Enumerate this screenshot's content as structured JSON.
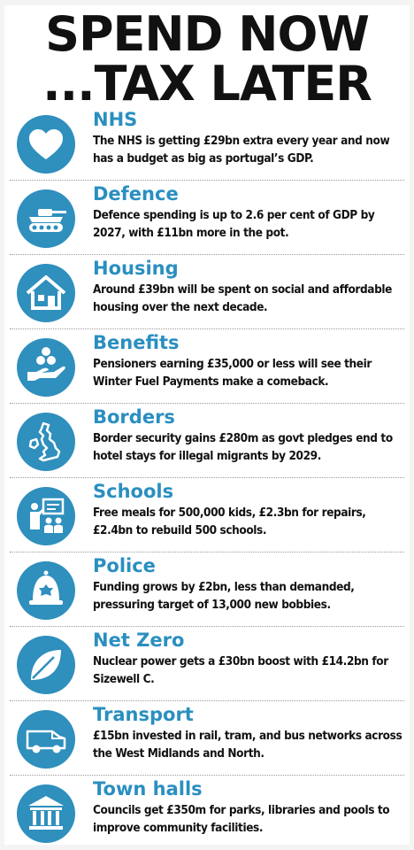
{
  "title": {
    "line1": "SPEND NOW",
    "line2": "...TAX LATER"
  },
  "accent_color": "#2f8fbd",
  "heading_color": "#2a8fc0",
  "items": [
    {
      "icon": "heart-icon",
      "heading": "NHS",
      "text": "The NHS is getting £29bn extra every year and now has a budget as big as portugal’s GDP."
    },
    {
      "icon": "tank-icon",
      "heading": "Defence",
      "text": "Defence spending is up to 2.6 per cent of GDP by 2027, with £11bn more in the pot."
    },
    {
      "icon": "house-icon",
      "heading": "Housing",
      "text": "Around £39bn will be spent on social and affordable housing over the next decade."
    },
    {
      "icon": "hand-coins-icon",
      "heading": "Benefits",
      "text": "Pensioners earning £35,000 or less will see their Winter Fuel Payments make a comeback."
    },
    {
      "icon": "uk-map-icon",
      "heading": "Borders",
      "text": "Border security gains £280m as govt pledges end to hotel stays for illegal migrants by 2029."
    },
    {
      "icon": "teacher-icon",
      "heading": "Schools",
      "text": "Free meals for 500,000 kids, £2.3bn for repairs, £2.4bn to rebuild 500 schools."
    },
    {
      "icon": "police-helmet-icon",
      "heading": "Police",
      "text": "Funding grows by £2bn, less than demanded, pressuring target of 13,000 new bobbies."
    },
    {
      "icon": "leaf-icon",
      "heading": "Net Zero",
      "text": "Nuclear power gets a £30bn boost with £14.2bn for Sizewell C."
    },
    {
      "icon": "van-icon",
      "heading": "Transport",
      "text": "£15bn invested in rail, tram, and bus networks across the West Midlands and North."
    },
    {
      "icon": "town-hall-icon",
      "heading": "Town halls",
      "text": "Councils get £350m for parks, libraries and pools to improve community facilities."
    }
  ]
}
